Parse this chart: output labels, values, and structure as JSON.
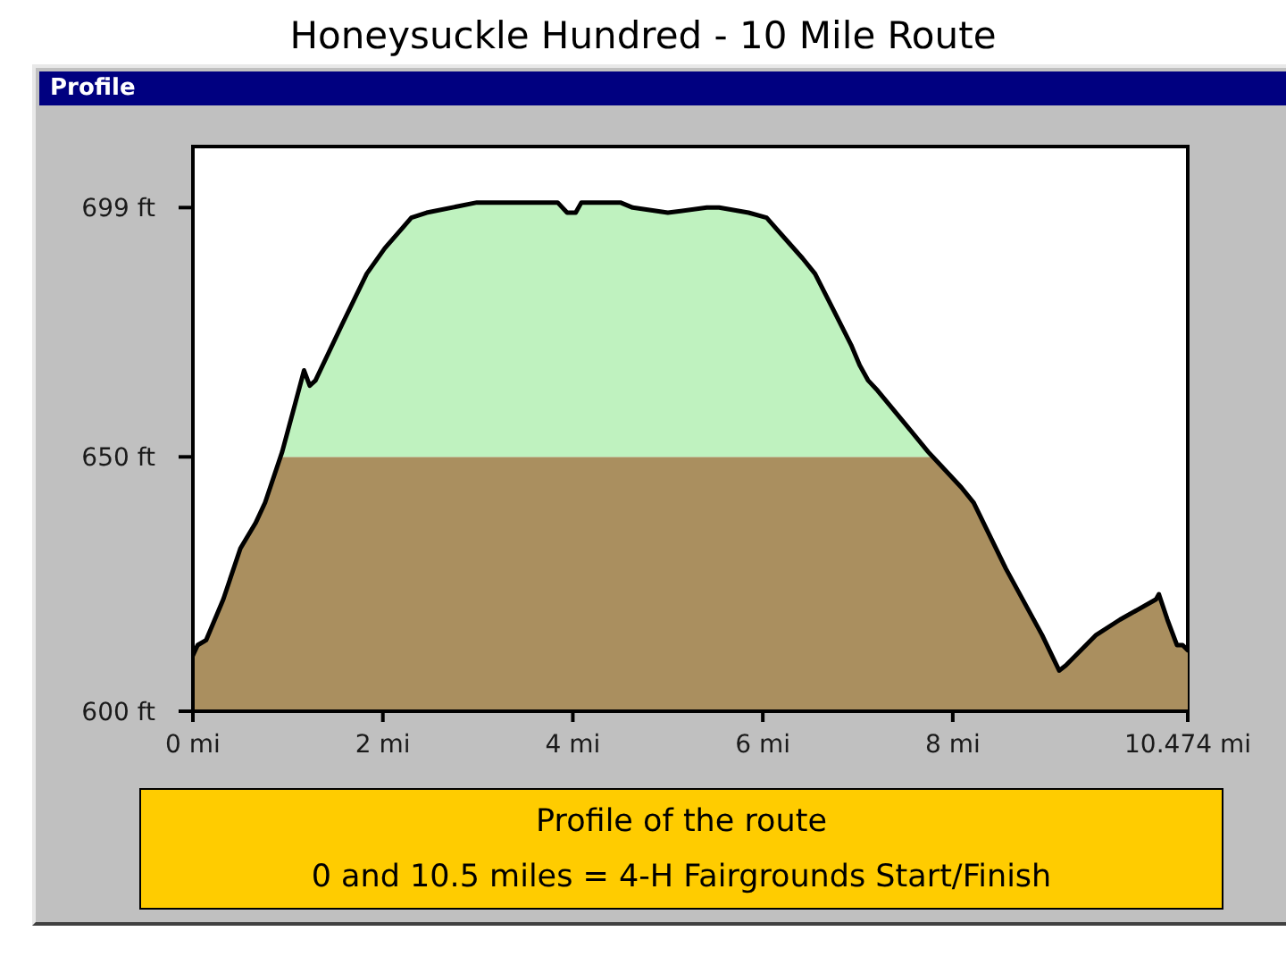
{
  "chart_data": {
    "type": "line",
    "title": "Honeysuckle Hundred - 10 Mile Route",
    "subtitle": "Profile",
    "x": [
      0,
      0.05,
      0.14,
      0.32,
      0.5,
      0.66,
      0.76,
      0.94,
      1.07,
      1.17,
      1.23,
      1.29,
      1.57,
      1.83,
      2.02,
      2.3,
      2.46,
      2.99,
      3.34,
      3.84,
      3.94,
      4.03,
      4.09,
      4.5,
      4.63,
      5.0,
      5.41,
      5.54,
      5.85,
      6.04,
      6.23,
      6.42,
      6.55,
      6.74,
      6.93,
      7.02,
      7.11,
      7.21,
      7.52,
      7.74,
      8.09,
      8.22,
      8.56,
      8.94,
      9.12,
      9.19,
      9.51,
      9.76,
      10.14,
      10.17,
      10.26,
      10.36,
      10.42,
      10.474
    ],
    "values": [
      611,
      613,
      614,
      622,
      632,
      637,
      641,
      651,
      660,
      667,
      664,
      665,
      676,
      686,
      691,
      697,
      698,
      700,
      700,
      700,
      698,
      698,
      700,
      700,
      699,
      698,
      699,
      699,
      698,
      697,
      693,
      689,
      686,
      679,
      672,
      668,
      665,
      663,
      656,
      651,
      644,
      641,
      628,
      615,
      608,
      609,
      615,
      618,
      622,
      623,
      618,
      613,
      613,
      612
    ],
    "color": "#000000",
    "xlim": [
      0,
      10.474
    ],
    "xticks": [
      {
        "value": 0,
        "label": "0 mi"
      },
      {
        "value": 2,
        "label": "2 mi"
      },
      {
        "value": 4,
        "label": "4 mi"
      },
      {
        "value": 6,
        "label": "6 mi"
      },
      {
        "value": 8,
        "label": "8 mi"
      },
      {
        "value": 10.474,
        "label": "10.474 mi"
      }
    ],
    "ylim": [
      600,
      711
    ],
    "yticks": [
      {
        "value": 600,
        "label": "600 ft"
      },
      {
        "value": 650,
        "label": "650 ft"
      },
      {
        "value": 699,
        "label": "699 ft"
      }
    ],
    "bands": [
      {
        "axis": "y",
        "from": 600,
        "to": 650,
        "color": "#aa8f5f"
      },
      {
        "axis": "y",
        "from": 650,
        "to": 711,
        "color": "#bff2bf"
      }
    ],
    "annotations": [
      "Profile of the route",
      "0 and 10.5 miles = 4-H Fairgrounds Start/Finish"
    ]
  }
}
